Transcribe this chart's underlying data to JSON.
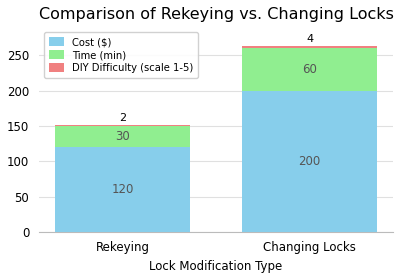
{
  "categories": [
    "Rekeying",
    "Changing Locks"
  ],
  "cost": [
    120,
    200
  ],
  "time": [
    30,
    60
  ],
  "diy": [
    2,
    4
  ],
  "cost_color": "#87CEEB",
  "time_color": "#90EE90",
  "diy_color": "#F08080",
  "title": "Comparison of Rekeying vs. Changing Locks",
  "xlabel": "Lock Modification Type",
  "legend_labels": [
    "Cost ($)",
    "Time (min)",
    "DIY Difficulty (scale 1-5)"
  ],
  "ylim": [
    0,
    290
  ],
  "bar_width": 0.72,
  "bg_color": "#FFFFFF",
  "plot_bg_color": "#FFFFFF",
  "grid_color": "#E0E0E0",
  "title_fontsize": 11.5,
  "label_fontsize": 8.5,
  "tick_fontsize": 8.5,
  "inner_label_color": "#555555",
  "inner_label_fontsize": 8.5,
  "diy_label_fontsize": 8.0
}
